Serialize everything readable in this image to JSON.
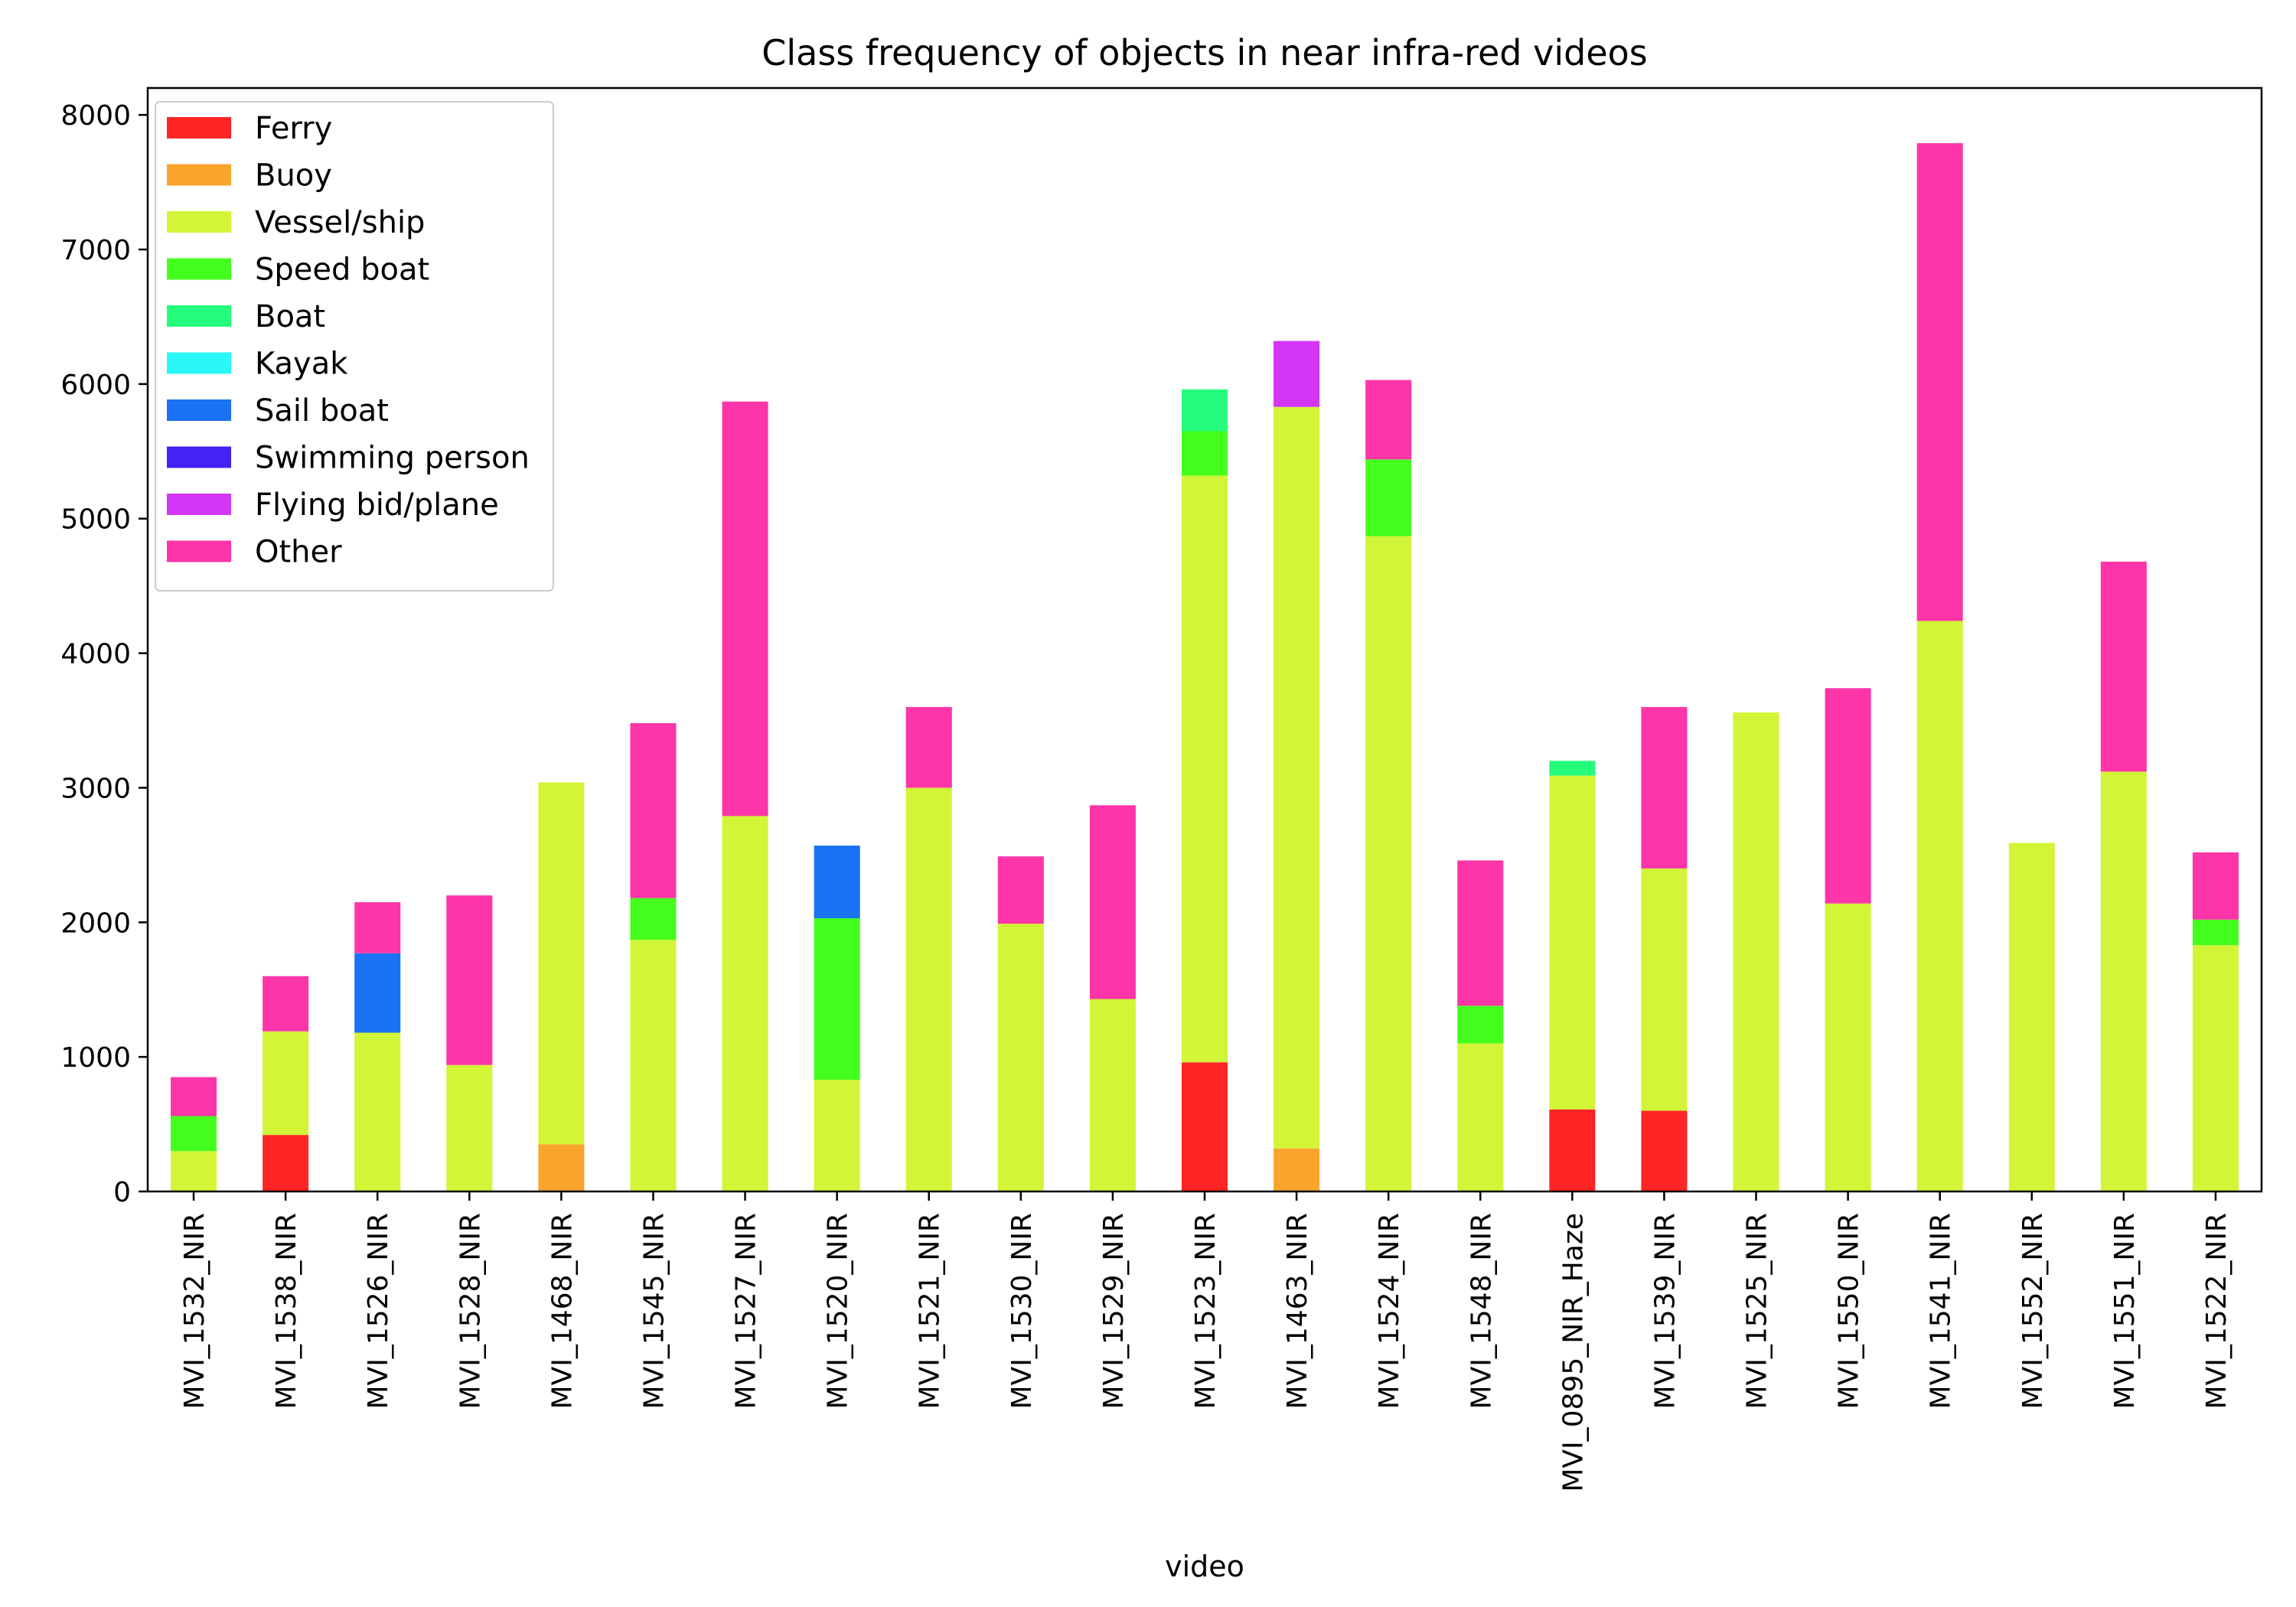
{
  "chart_data": {
    "type": "bar",
    "stacked": true,
    "title": "Class frequency of objects in near infra-red videos",
    "xlabel": "video",
    "ylabel": "",
    "ylim": [
      0,
      8200
    ],
    "yticks": [
      0,
      1000,
      2000,
      3000,
      4000,
      5000,
      6000,
      7000,
      8000
    ],
    "grid": false,
    "legend_position": "top-left",
    "categories": [
      "MVI_1532_NIR",
      "MVI_1538_NIR",
      "MVI_1526_NIR",
      "MVI_1528_NIR",
      "MVI_1468_NIR",
      "MVI_1545_NIR",
      "MVI_1527_NIR",
      "MVI_1520_NIR",
      "MVI_1521_NIR",
      "MVI_1530_NIR",
      "MVI_1529_NIR",
      "MVI_1523_NIR",
      "MVI_1463_NIR",
      "MVI_1524_NIR",
      "MVI_1548_NIR",
      "MVI_0895_NIR_Haze",
      "MVI_1539_NIR",
      "MVI_1525_NIR",
      "MVI_1550_NIR",
      "MVI_1541_NIR",
      "MVI_1552_NIR",
      "MVI_1551_NIR",
      "MVI_1522_NIR"
    ],
    "series": [
      {
        "name": "Ferry",
        "color": "#ff2525",
        "values": [
          0,
          420,
          0,
          0,
          0,
          0,
          0,
          0,
          0,
          0,
          0,
          960,
          0,
          0,
          0,
          610,
          600,
          0,
          0,
          0,
          0,
          0,
          0
        ]
      },
      {
        "name": "Buoy",
        "color": "#f9a52d",
        "values": [
          0,
          0,
          0,
          0,
          350,
          0,
          0,
          0,
          0,
          0,
          0,
          0,
          320,
          0,
          0,
          0,
          0,
          0,
          0,
          0,
          0,
          0,
          0
        ]
      },
      {
        "name": "Vessel/ship",
        "color": "#d2f537",
        "values": [
          300,
          770,
          1180,
          940,
          2690,
          1870,
          2790,
          830,
          3000,
          1990,
          1430,
          4360,
          5510,
          4870,
          1100,
          2480,
          1800,
          3560,
          2140,
          4240,
          2590,
          3120,
          1830
        ]
      },
      {
        "name": "Speed boat",
        "color": "#44ff1d",
        "values": [
          260,
          0,
          0,
          0,
          0,
          310,
          0,
          1200,
          0,
          0,
          0,
          330,
          0,
          570,
          280,
          0,
          0,
          0,
          0,
          0,
          0,
          0,
          190
        ]
      },
      {
        "name": "Boat",
        "color": "#25fb7d",
        "values": [
          0,
          0,
          0,
          0,
          0,
          0,
          0,
          0,
          0,
          0,
          0,
          310,
          0,
          0,
          0,
          110,
          0,
          0,
          0,
          0,
          0,
          0,
          0
        ]
      },
      {
        "name": "Kayak",
        "color": "#2af7f7",
        "values": [
          0,
          0,
          0,
          0,
          0,
          0,
          0,
          0,
          0,
          0,
          0,
          0,
          0,
          0,
          0,
          0,
          0,
          0,
          0,
          0,
          0,
          0,
          0
        ]
      },
      {
        "name": "Sail boat",
        "color": "#1a72f5",
        "values": [
          0,
          0,
          590,
          0,
          0,
          0,
          0,
          540,
          0,
          0,
          0,
          0,
          0,
          0,
          0,
          0,
          0,
          0,
          0,
          0,
          0,
          0,
          0
        ]
      },
      {
        "name": "Swimming person",
        "color": "#4322f3",
        "values": [
          0,
          0,
          0,
          0,
          0,
          0,
          0,
          0,
          0,
          0,
          0,
          0,
          0,
          0,
          0,
          0,
          0,
          0,
          0,
          0,
          0,
          0,
          0
        ]
      },
      {
        "name": "Flying bid/plane",
        "color": "#d336f7",
        "values": [
          0,
          0,
          0,
          0,
          0,
          0,
          0,
          0,
          0,
          0,
          0,
          0,
          490,
          0,
          0,
          0,
          0,
          0,
          0,
          0,
          0,
          0,
          0
        ]
      },
      {
        "name": "Other",
        "color": "#fd35a8",
        "values": [
          290,
          410,
          380,
          1260,
          0,
          1300,
          3080,
          0,
          600,
          500,
          1440,
          0,
          0,
          590,
          1080,
          0,
          1200,
          0,
          1600,
          3550,
          0,
          1560,
          500
        ]
      }
    ]
  }
}
